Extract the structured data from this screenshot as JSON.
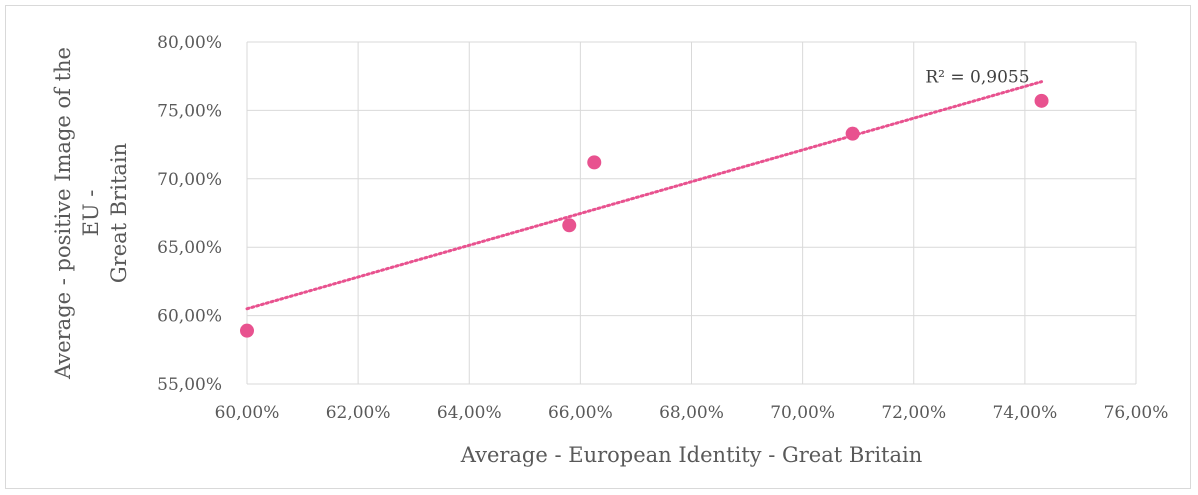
{
  "chart_data": {
    "type": "scatter",
    "title": "",
    "xlabel": "Average - European Identity - Great Britain",
    "ylabel_lines": [
      "Average - positive Image of the",
      "EU -",
      "Great Britain"
    ],
    "xlim": [
      0.6,
      0.76
    ],
    "ylim": [
      0.55,
      0.8
    ],
    "x_ticks": [
      "60,00%",
      "62,00%",
      "64,00%",
      "66,00%",
      "68,00%",
      "70,00%",
      "72,00%",
      "74,00%",
      "76,00%"
    ],
    "y_ticks": [
      "55,00%",
      "60,00%",
      "65,00%",
      "70,00%",
      "75,00%",
      "80,00%"
    ],
    "grid": true,
    "legend": "none",
    "points": [
      {
        "x": 0.6,
        "y": 0.589
      },
      {
        "x": 0.658,
        "y": 0.666
      },
      {
        "x": 0.6625,
        "y": 0.712
      },
      {
        "x": 0.709,
        "y": 0.733
      },
      {
        "x": 0.743,
        "y": 0.757
      }
    ],
    "trendline": {
      "type": "linear",
      "x": [
        0.6,
        0.743
      ],
      "y": [
        0.605,
        0.771
      ],
      "r2_label": "R² = 0,9055"
    },
    "colors": {
      "point": "#e8528f",
      "trendline": "#e8528f",
      "grid": "#d9d9d9"
    }
  }
}
